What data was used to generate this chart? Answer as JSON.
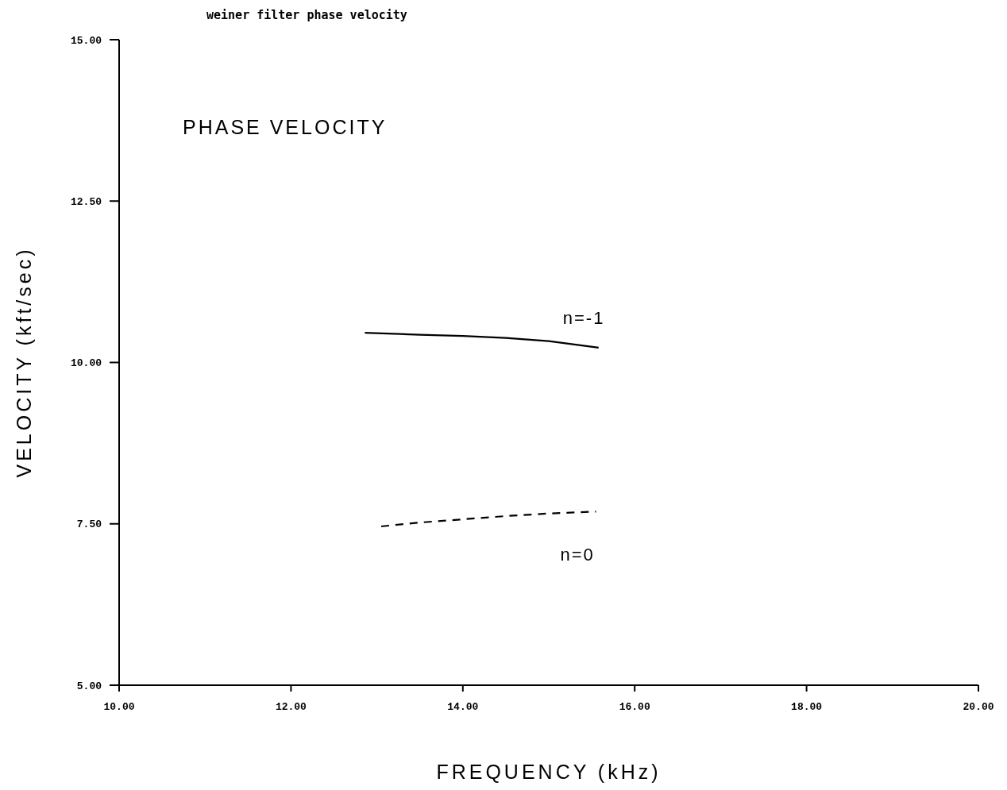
{
  "chart_data": {
    "type": "line",
    "title": "weiner filter phase velocity",
    "xlabel": "FREQUENCY (kHz)",
    "ylabel": "VELOCITY (kft/sec)",
    "annotations": [
      "PHASE VELOCITY"
    ],
    "xlim": [
      10,
      20
    ],
    "xticks": [
      {
        "value": 10,
        "label": "10.00"
      },
      {
        "value": 12,
        "label": "12.00"
      },
      {
        "value": 14,
        "label": "14.00"
      },
      {
        "value": 16,
        "label": "16.00"
      },
      {
        "value": 18,
        "label": "18.00"
      },
      {
        "value": 20,
        "label": "20.00"
      }
    ],
    "ylim": [
      5,
      15
    ],
    "yticks": [
      {
        "value": 5,
        "label": "5.00"
      },
      {
        "value": 7.5,
        "label": "7.50"
      },
      {
        "value": 10,
        "label": "10.00"
      },
      {
        "value": 12.5,
        "label": "12.50"
      },
      {
        "value": 15,
        "label": "15.00"
      }
    ],
    "grid": false,
    "legend": false,
    "marker": "none",
    "series": [
      {
        "name": "n=-1",
        "color": "#000000",
        "line_style": "solid",
        "x": [
          12.86,
          13.5,
          14.0,
          14.5,
          15.0,
          15.58
        ],
        "values": [
          10.46,
          10.43,
          10.41,
          10.38,
          10.33,
          10.23
        ]
      },
      {
        "name": "n=0",
        "color": "#000000",
        "line_style": "dashed",
        "x": [
          13.05,
          13.5,
          14.0,
          14.5,
          15.0,
          15.55
        ],
        "values": [
          7.46,
          7.52,
          7.57,
          7.62,
          7.66,
          7.69
        ]
      }
    ]
  }
}
